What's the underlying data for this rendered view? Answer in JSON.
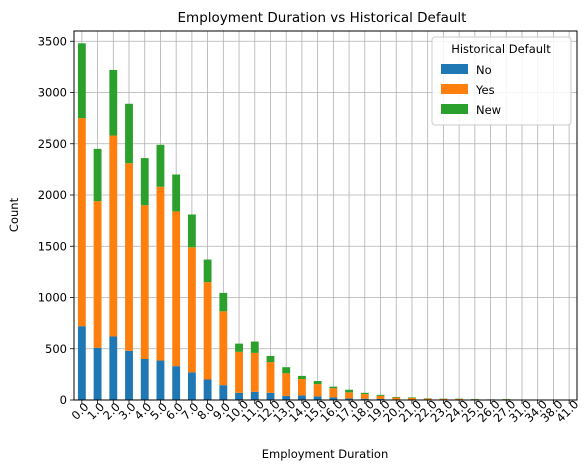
{
  "chart_data": {
    "type": "bar",
    "stacked": true,
    "title": "Employment Duration vs Historical Default",
    "xlabel": "Employment Duration",
    "ylabel": "Count",
    "ylim": [
      0,
      3600
    ],
    "yticks": [
      0,
      500,
      1000,
      1500,
      2000,
      2500,
      3000,
      3500
    ],
    "grid": true,
    "legend": {
      "title": "Historical Default",
      "placement": "top-right"
    },
    "categories": [
      "0.0",
      "1.0",
      "2.0",
      "3.0",
      "4.0",
      "5.0",
      "6.0",
      "7.0",
      "8.0",
      "9.0",
      "10.0",
      "11.0",
      "12.0",
      "13.0",
      "14.0",
      "15.0",
      "16.0",
      "17.0",
      "18.0",
      "19.0",
      "20.0",
      "21.0",
      "22.0",
      "23.0",
      "24.0",
      "25.0",
      "26.0",
      "27.0",
      "31.0",
      "34.0",
      "38.0",
      "41.0"
    ],
    "series": [
      {
        "name": "No",
        "color": "#1f77b4",
        "values": [
          720,
          510,
          620,
          480,
          400,
          385,
          330,
          270,
          200,
          145,
          70,
          80,
          70,
          40,
          45,
          35,
          25,
          15,
          12,
          10,
          6,
          5,
          3,
          3,
          3,
          3,
          1,
          2,
          0,
          0,
          0,
          0
        ]
      },
      {
        "name": "Yes",
        "color": "#ff7f0e",
        "values": [
          2030,
          1430,
          1960,
          1830,
          1500,
          1695,
          1510,
          1220,
          950,
          720,
          400,
          380,
          300,
          220,
          160,
          120,
          90,
          60,
          45,
          30,
          18,
          14,
          10,
          7,
          7,
          4,
          3,
          5,
          1,
          1,
          1,
          1
        ]
      },
      {
        "name": "New",
        "color": "#2ca02c",
        "values": [
          730,
          510,
          640,
          580,
          460,
          410,
          360,
          320,
          220,
          180,
          80,
          110,
          60,
          60,
          30,
          30,
          15,
          25,
          13,
          10,
          6,
          6,
          4,
          3,
          3,
          3,
          2,
          3,
          1,
          0,
          0,
          0
        ]
      }
    ]
  }
}
